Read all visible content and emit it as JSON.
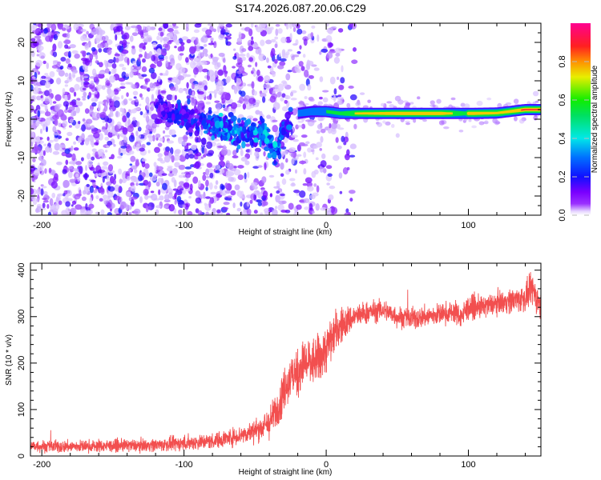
{
  "chart_data": [
    {
      "type": "heatmap",
      "title": "S174.2026.087.20.06.C29",
      "xlabel": "Height of straight line (km)",
      "ylabel": "Frequency (Hz)",
      "xlim": [
        -208,
        151
      ],
      "ylim": [
        -25,
        25
      ],
      "xticks": [
        -200,
        -100,
        0,
        100
      ],
      "yticks": [
        -20,
        -10,
        0,
        10,
        20
      ],
      "colorbar": {
        "label": "Normalized spectral amplitude",
        "range": [
          0,
          1
        ],
        "ticks": [
          0.0,
          0.2,
          0.4,
          0.6,
          0.8
        ],
        "tick_labels": [
          "0.0",
          "0.2",
          "0.4",
          "0.6",
          "0.8"
        ],
        "colormap": [
          "#ffffff",
          "#e8d8ff",
          "#8a00ff",
          "#0000ff",
          "#00ffff",
          "#00ff00",
          "#ffff00",
          "#ff8000",
          "#ff0000",
          "#ff0090"
        ]
      },
      "features": {
        "noise_region_x": [
          -208,
          -20
        ],
        "noise_amplitude": 0.1,
        "carrier_track": {
          "x": [
            -20,
            -10,
            0,
            10,
            20,
            50,
            80,
            98,
            100,
            120,
            140,
            151
          ],
          "freq": [
            1.5,
            2.0,
            2.0,
            1.5,
            1.5,
            1.5,
            1.5,
            1.5,
            1.5,
            1.6,
            2.5,
            2.5
          ],
          "amplitude": [
            0.45,
            0.5,
            0.55,
            0.6,
            0.75,
            0.9,
            0.9,
            0.6,
            0.9,
            0.8,
            0.95,
            0.95
          ]
        },
        "scintillation_track": {
          "x": [
            -120,
            -100,
            -90,
            -80,
            -70,
            -60,
            -50,
            -45,
            -40,
            -35,
            -30,
            -25
          ],
          "freq": [
            3,
            1,
            -1,
            -1.5,
            -2,
            -3,
            -4,
            -3,
            -6,
            -8,
            -3,
            0
          ],
          "amplitude": [
            0.2,
            0.25,
            0.25,
            0.3,
            0.35,
            0.3,
            0.35,
            0.3,
            0.4,
            0.35,
            0.3,
            0.3
          ]
        }
      }
    },
    {
      "type": "line",
      "xlabel": "Height of straight line (km)",
      "ylabel": "SNR (10 * v/v)",
      "xlim": [
        -208,
        151
      ],
      "ylim": [
        0,
        415
      ],
      "xticks": [
        -200,
        -100,
        0,
        100
      ],
      "yticks": [
        0,
        100,
        200,
        300,
        400
      ],
      "series": [
        {
          "name": "SNR",
          "color": "#f03030",
          "x": [
            -208,
            -190,
            -170,
            -150,
            -130,
            -110,
            -100,
            -90,
            -80,
            -70,
            -60,
            -50,
            -40,
            -35,
            -30,
            -25,
            -20,
            -15,
            -10,
            -5,
            0,
            5,
            10,
            15,
            20,
            30,
            40,
            50,
            60,
            70,
            80,
            90,
            95,
            100,
            110,
            120,
            130,
            140,
            145,
            151
          ],
          "y": [
            22,
            20,
            21,
            22,
            23,
            25,
            28,
            30,
            32,
            38,
            45,
            55,
            70,
            100,
            140,
            170,
            180,
            200,
            200,
            210,
            230,
            260,
            280,
            290,
            300,
            310,
            315,
            300,
            295,
            300,
            305,
            310,
            300,
            320,
            320,
            330,
            335,
            340,
            360,
            320
          ],
          "noise": [
            20,
            20,
            20,
            20,
            20,
            22,
            25,
            25,
            25,
            28,
            30,
            35,
            50,
            60,
            70,
            70,
            80,
            80,
            80,
            80,
            80,
            70,
            60,
            50,
            40,
            35,
            35,
            35,
            35,
            35,
            35,
            35,
            40,
            40,
            35,
            35,
            40,
            45,
            50,
            50
          ]
        }
      ]
    }
  ]
}
